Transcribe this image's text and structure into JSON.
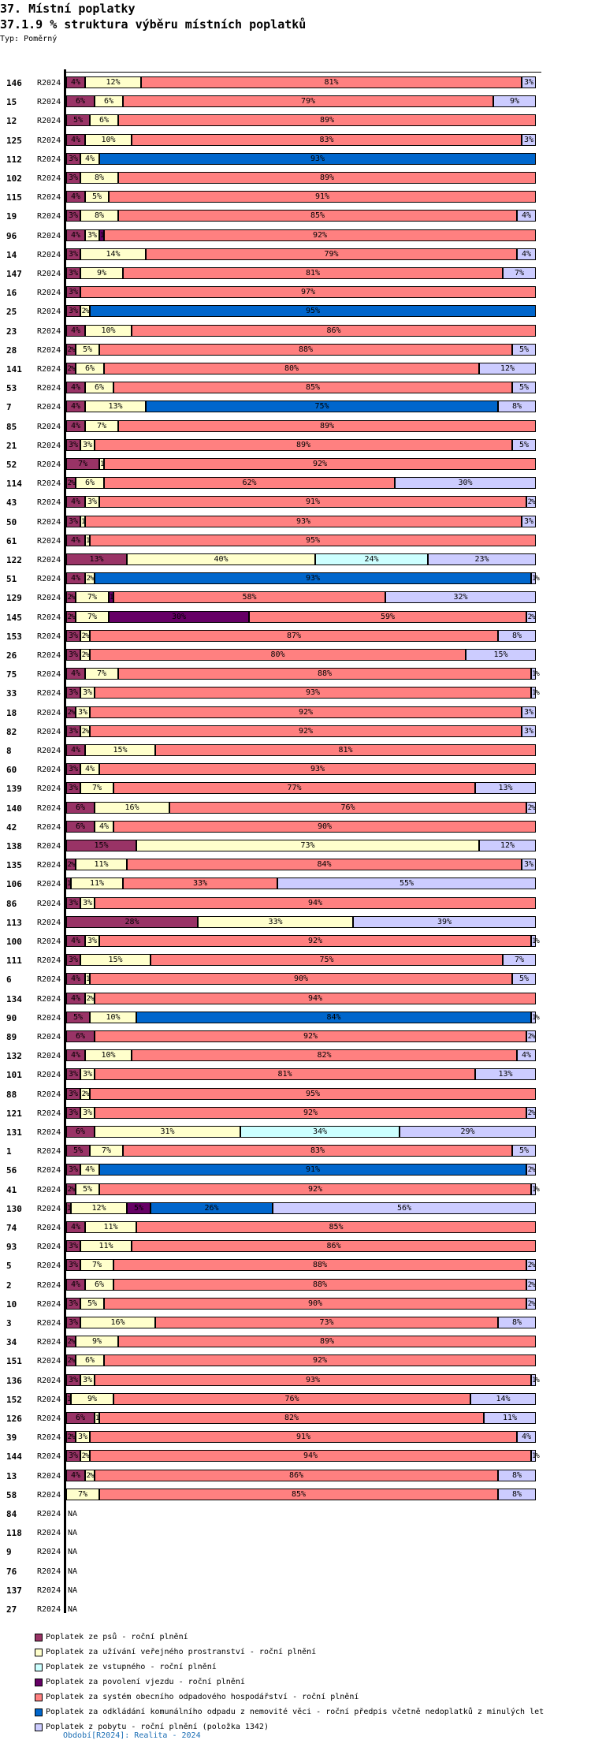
{
  "header": {
    "title": "37. Místní poplatky",
    "subtitle": "37.1.9 % struktura výběru místních poplatků",
    "type_label": "Typ: Poměrný"
  },
  "footer": {
    "period_note": "Období[R2024]: Realita - 2024"
  },
  "chart_data": {
    "type": "bar",
    "orientation": "horizontal",
    "stacked": "percent",
    "title": "37.1.9 % struktura výběru místních poplatků",
    "xlabel": "",
    "ylabel": "",
    "xlim": [
      0,
      100
    ],
    "legend_position": "bottom",
    "series": [
      {
        "key": "psu",
        "name": "Poplatek ze psů - roční plnění",
        "color": "#993366"
      },
      {
        "key": "verejne",
        "name": "Poplatek za užívání veřejného prostranství - roční plnění",
        "color": "#FFFFCC"
      },
      {
        "key": "vstupne",
        "name": "Poplatek ze vstupného - roční plnění",
        "color": "#CCFFFF"
      },
      {
        "key": "vjezd",
        "name": "Poplatek za povolení vjezdu - roční plnění",
        "color": "#660066"
      },
      {
        "key": "odpad_system",
        "name": "Poplatek za systém obecního odpadového hospodářství - roční plnění",
        "color": "#FF8080"
      },
      {
        "key": "odpad_nemovitost",
        "name": "Poplatek za odkládání komunálního odpadu z nemovité věci - roční předpis včetně nedoplatků z minulých let",
        "color": "#0066CC"
      },
      {
        "key": "pobyt",
        "name": "Poplatek z pobytu - roční plnění (položka 1342)",
        "color": "#CCCCFF"
      }
    ],
    "rows": [
      {
        "id": "146",
        "period": "R2024",
        "values": [
          4,
          12,
          0,
          0,
          81,
          0,
          3
        ]
      },
      {
        "id": "15",
        "period": "R2024",
        "values": [
          6,
          6,
          0,
          0,
          79,
          0,
          9
        ]
      },
      {
        "id": "12",
        "period": "R2024",
        "values": [
          5,
          6,
          0,
          0,
          89,
          0,
          0
        ]
      },
      {
        "id": "125",
        "period": "R2024",
        "values": [
          4,
          10,
          0,
          0,
          83,
          0,
          3
        ]
      },
      {
        "id": "112",
        "period": "R2024",
        "values": [
          3,
          4,
          0,
          0,
          0,
          93,
          0
        ]
      },
      {
        "id": "102",
        "period": "R2024",
        "values": [
          3,
          8,
          0,
          0,
          89,
          0,
          0
        ]
      },
      {
        "id": "115",
        "period": "R2024",
        "values": [
          4,
          5,
          0,
          0,
          91,
          0,
          0
        ]
      },
      {
        "id": "19",
        "period": "R2024",
        "values": [
          3,
          8,
          0,
          0,
          85,
          0,
          4
        ]
      },
      {
        "id": "96",
        "period": "R2024",
        "values": [
          4,
          3,
          0,
          1,
          92,
          0,
          0
        ]
      },
      {
        "id": "14",
        "period": "R2024",
        "values": [
          3,
          14,
          0,
          0,
          79,
          0,
          4
        ]
      },
      {
        "id": "147",
        "period": "R2024",
        "values": [
          3,
          9,
          0,
          0,
          81,
          0,
          7
        ]
      },
      {
        "id": "16",
        "period": "R2024",
        "values": [
          3,
          0,
          0,
          0,
          97,
          0,
          0
        ]
      },
      {
        "id": "25",
        "period": "R2024",
        "values": [
          3,
          2,
          0,
          0,
          0,
          95,
          0
        ]
      },
      {
        "id": "23",
        "period": "R2024",
        "values": [
          4,
          10,
          0,
          0,
          86,
          0,
          0
        ]
      },
      {
        "id": "28",
        "period": "R2024",
        "values": [
          2,
          5,
          0,
          0,
          88,
          0,
          5
        ]
      },
      {
        "id": "141",
        "period": "R2024",
        "values": [
          2,
          6,
          0,
          0,
          80,
          0,
          12
        ]
      },
      {
        "id": "53",
        "period": "R2024",
        "values": [
          4,
          6,
          0,
          0,
          85,
          0,
          5
        ]
      },
      {
        "id": "7",
        "period": "R2024",
        "values": [
          4,
          13,
          0,
          0,
          0,
          75,
          8
        ]
      },
      {
        "id": "85",
        "period": "R2024",
        "values": [
          4,
          7,
          0,
          0,
          89,
          0,
          0
        ]
      },
      {
        "id": "21",
        "period": "R2024",
        "values": [
          3,
          3,
          0,
          0,
          89,
          0,
          5
        ]
      },
      {
        "id": "52",
        "period": "R2024",
        "values": [
          7,
          1,
          0,
          0,
          92,
          0,
          0
        ]
      },
      {
        "id": "114",
        "period": "R2024",
        "values": [
          2,
          6,
          0,
          0,
          62,
          0,
          30
        ]
      },
      {
        "id": "43",
        "period": "R2024",
        "values": [
          4,
          3,
          0,
          0,
          91,
          0,
          2
        ]
      },
      {
        "id": "50",
        "period": "R2024",
        "values": [
          3,
          1,
          0,
          0,
          93,
          0,
          3
        ]
      },
      {
        "id": "61",
        "period": "R2024",
        "values": [
          4,
          1,
          0,
          0,
          95,
          0,
          0
        ]
      },
      {
        "id": "122",
        "period": "R2024",
        "values": [
          13,
          40,
          24,
          0,
          0,
          0,
          23
        ]
      },
      {
        "id": "51",
        "period": "R2024",
        "values": [
          4,
          2,
          0,
          0,
          0,
          93,
          1
        ]
      },
      {
        "id": "129",
        "period": "R2024",
        "values": [
          2,
          7,
          0,
          1,
          58,
          0,
          32
        ]
      },
      {
        "id": "145",
        "period": "R2024",
        "values": [
          2,
          7,
          0,
          30,
          59,
          0,
          2
        ]
      },
      {
        "id": "153",
        "period": "R2024",
        "values": [
          3,
          2,
          0,
          0,
          87,
          0,
          8
        ]
      },
      {
        "id": "26",
        "period": "R2024",
        "values": [
          3,
          2,
          0,
          0,
          80,
          0,
          15
        ]
      },
      {
        "id": "75",
        "period": "R2024",
        "values": [
          4,
          7,
          0,
          0,
          88,
          0,
          1
        ]
      },
      {
        "id": "33",
        "period": "R2024",
        "values": [
          3,
          3,
          0,
          0,
          93,
          0,
          1
        ]
      },
      {
        "id": "18",
        "period": "R2024",
        "values": [
          2,
          3,
          0,
          0,
          92,
          0,
          3
        ]
      },
      {
        "id": "82",
        "period": "R2024",
        "values": [
          3,
          2,
          0,
          0,
          92,
          0,
          3
        ]
      },
      {
        "id": "8",
        "period": "R2024",
        "values": [
          4,
          15,
          0,
          0,
          81,
          0,
          0
        ]
      },
      {
        "id": "60",
        "period": "R2024",
        "values": [
          3,
          4,
          0,
          0,
          93,
          0,
          0
        ]
      },
      {
        "id": "139",
        "period": "R2024",
        "values": [
          3,
          7,
          0,
          0,
          77,
          0,
          13
        ]
      },
      {
        "id": "140",
        "period": "R2024",
        "values": [
          6,
          16,
          0,
          0,
          76,
          0,
          2
        ]
      },
      {
        "id": "42",
        "period": "R2024",
        "values": [
          6,
          4,
          0,
          0,
          90,
          0,
          0
        ]
      },
      {
        "id": "138",
        "period": "R2024",
        "values": [
          15,
          73,
          0,
          0,
          0,
          0,
          12
        ]
      },
      {
        "id": "135",
        "period": "R2024",
        "values": [
          2,
          11,
          0,
          0,
          84,
          0,
          3
        ]
      },
      {
        "id": "106",
        "period": "R2024",
        "values": [
          1,
          11,
          0,
          0,
          33,
          0,
          55
        ]
      },
      {
        "id": "86",
        "period": "R2024",
        "values": [
          3,
          3,
          0,
          0,
          94,
          0,
          0
        ]
      },
      {
        "id": "113",
        "period": "R2024",
        "values": [
          28,
          33,
          0,
          0,
          0,
          0,
          39
        ]
      },
      {
        "id": "100",
        "period": "R2024",
        "values": [
          4,
          3,
          0,
          0,
          92,
          0,
          1
        ]
      },
      {
        "id": "111",
        "period": "R2024",
        "values": [
          3,
          15,
          0,
          0,
          75,
          0,
          7
        ]
      },
      {
        "id": "6",
        "period": "R2024",
        "values": [
          4,
          1,
          0,
          0,
          90,
          0,
          5
        ]
      },
      {
        "id": "134",
        "period": "R2024",
        "values": [
          4,
          2,
          0,
          0,
          94,
          0,
          0
        ]
      },
      {
        "id": "90",
        "period": "R2024",
        "values": [
          5,
          10,
          0,
          0,
          0,
          84,
          1
        ]
      },
      {
        "id": "89",
        "period": "R2024",
        "values": [
          6,
          0,
          0,
          0,
          92,
          0,
          2
        ]
      },
      {
        "id": "132",
        "period": "R2024",
        "values": [
          4,
          10,
          0,
          0,
          82,
          0,
          4
        ]
      },
      {
        "id": "101",
        "period": "R2024",
        "values": [
          3,
          3,
          0,
          0,
          81,
          0,
          13
        ]
      },
      {
        "id": "88",
        "period": "R2024",
        "values": [
          3,
          2,
          0,
          0,
          95,
          0,
          0
        ]
      },
      {
        "id": "121",
        "period": "R2024",
        "values": [
          3,
          3,
          0,
          0,
          92,
          0,
          2
        ]
      },
      {
        "id": "131",
        "period": "R2024",
        "values": [
          6,
          31,
          34,
          0,
          0,
          0,
          29
        ]
      },
      {
        "id": "1",
        "period": "R2024",
        "values": [
          5,
          7,
          0,
          0,
          83,
          0,
          5
        ]
      },
      {
        "id": "56",
        "period": "R2024",
        "values": [
          3,
          4,
          0,
          0,
          0,
          91,
          2
        ]
      },
      {
        "id": "41",
        "period": "R2024",
        "values": [
          2,
          5,
          0,
          0,
          92,
          0,
          1
        ]
      },
      {
        "id": "130",
        "period": "R2024",
        "values": [
          1,
          12,
          0,
          5,
          0,
          26,
          56
        ]
      },
      {
        "id": "74",
        "period": "R2024",
        "values": [
          4,
          11,
          0,
          0,
          85,
          0,
          0
        ]
      },
      {
        "id": "93",
        "period": "R2024",
        "values": [
          3,
          11,
          0,
          0,
          86,
          0,
          0
        ]
      },
      {
        "id": "5",
        "period": "R2024",
        "values": [
          3,
          7,
          0,
          0,
          88,
          0,
          2
        ]
      },
      {
        "id": "2",
        "period": "R2024",
        "values": [
          4,
          6,
          0,
          0,
          88,
          0,
          2
        ]
      },
      {
        "id": "10",
        "period": "R2024",
        "values": [
          3,
          5,
          0,
          0,
          90,
          0,
          2
        ]
      },
      {
        "id": "3",
        "period": "R2024",
        "values": [
          3,
          16,
          0,
          0,
          73,
          0,
          8
        ]
      },
      {
        "id": "34",
        "period": "R2024",
        "values": [
          2,
          9,
          0,
          0,
          89,
          0,
          0
        ]
      },
      {
        "id": "151",
        "period": "R2024",
        "values": [
          2,
          6,
          0,
          0,
          92,
          0,
          0
        ]
      },
      {
        "id": "136",
        "period": "R2024",
        "values": [
          3,
          3,
          0,
          0,
          93,
          0,
          1
        ]
      },
      {
        "id": "152",
        "period": "R2024",
        "values": [
          1,
          9,
          0,
          0,
          76,
          0,
          14
        ]
      },
      {
        "id": "126",
        "period": "R2024",
        "values": [
          6,
          1,
          0,
          0,
          82,
          0,
          11
        ]
      },
      {
        "id": "39",
        "period": "R2024",
        "values": [
          2,
          3,
          0,
          0,
          91,
          0,
          4
        ]
      },
      {
        "id": "144",
        "period": "R2024",
        "values": [
          3,
          2,
          0,
          0,
          94,
          0,
          1
        ]
      },
      {
        "id": "13",
        "period": "R2024",
        "values": [
          4,
          2,
          0,
          0,
          86,
          0,
          8
        ]
      },
      {
        "id": "58",
        "period": "R2024",
        "values": [
          0,
          7,
          0,
          0,
          85,
          0,
          8
        ]
      },
      {
        "id": "84",
        "period": "R2024",
        "values": null
      },
      {
        "id": "118",
        "period": "R2024",
        "values": null
      },
      {
        "id": "9",
        "period": "R2024",
        "values": null
      },
      {
        "id": "76",
        "period": "R2024",
        "values": null
      },
      {
        "id": "137",
        "period": "R2024",
        "values": null
      },
      {
        "id": "27",
        "period": "R2024",
        "values": null
      }
    ],
    "na_label": "NA"
  }
}
